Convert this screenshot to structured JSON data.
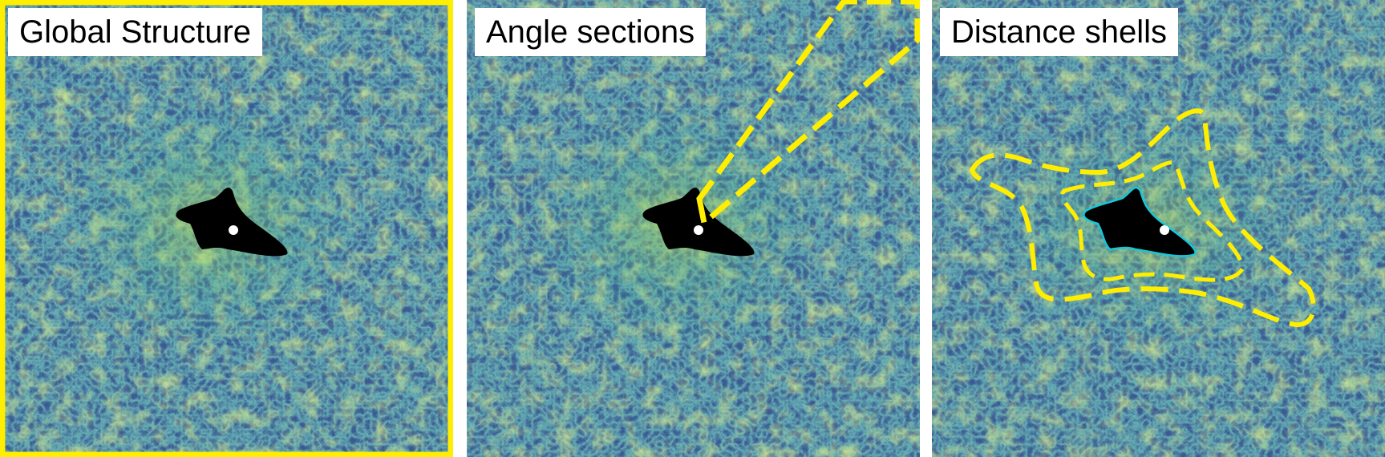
{
  "panels": [
    {
      "title": "Global Structure",
      "highlight": "whole-box"
    },
    {
      "title": "Angle sections",
      "highlight": "angular-wedge"
    },
    {
      "title": "Distance shells",
      "highlight": "nested-shells"
    }
  ],
  "colors": {
    "background_field": "#3b5a93",
    "filament_bright": "#d8ef3a",
    "filament_mid": "#3fb08a",
    "void_region": "#000000",
    "center_point": "#ffffff",
    "highlight": "#ffee00",
    "void_outline": "#17c7d8"
  }
}
